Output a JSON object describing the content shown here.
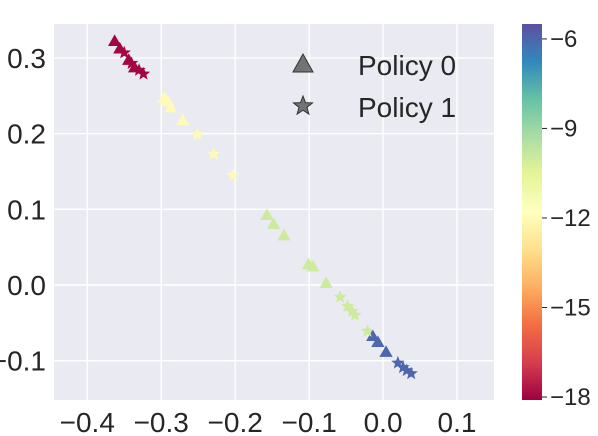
{
  "chart_data": {
    "type": "scatter",
    "title": "",
    "xlabel": "",
    "ylabel": "",
    "xlim": [
      -0.445,
      0.15
    ],
    "ylim": [
      -0.152,
      0.345
    ],
    "x_ticks": [
      -0.4,
      -0.3,
      -0.2,
      -0.1,
      0.0,
      0.1
    ],
    "x_tick_labels": [
      "−0.4",
      "−0.3",
      "−0.2",
      "−0.1",
      "0.0",
      "0.1"
    ],
    "y_ticks": [
      0.3,
      0.2,
      0.1,
      0.0,
      -0.1
    ],
    "y_tick_labels": [
      "0.3",
      "0.2",
      "0.1",
      "0.0",
      "−0.1"
    ],
    "grid": true,
    "background": "#eaeaf2",
    "colormap": "Spectral",
    "colorbar": {
      "range": [
        -18.1,
        -5.5
      ],
      "ticks": [
        -6,
        -9,
        -12,
        -15,
        -18
      ],
      "tick_labels": [
        "−6",
        "−9",
        "−12",
        "−15",
        "−18"
      ]
    },
    "legend": {
      "position": "top-right",
      "entries": [
        {
          "label": "Policy 0",
          "marker": "triangle"
        },
        {
          "label": "Policy 1",
          "marker": "star"
        }
      ]
    },
    "series": [
      {
        "name": "Policy 0",
        "marker": "triangle",
        "points": [
          {
            "x": -0.363,
            "y": 0.322,
            "c": -18
          },
          {
            "x": -0.356,
            "y": 0.312,
            "c": -18
          },
          {
            "x": -0.344,
            "y": 0.297,
            "c": -18
          },
          {
            "x": -0.336,
            "y": 0.287,
            "c": -18
          },
          {
            "x": -0.296,
            "y": 0.247,
            "c": -12
          },
          {
            "x": -0.291,
            "y": 0.242,
            "c": -12
          },
          {
            "x": -0.287,
            "y": 0.234,
            "c": -12
          },
          {
            "x": -0.271,
            "y": 0.217,
            "c": -12
          },
          {
            "x": -0.157,
            "y": 0.092,
            "c": -10
          },
          {
            "x": -0.148,
            "y": 0.08,
            "c": -10
          },
          {
            "x": -0.134,
            "y": 0.065,
            "c": -10
          },
          {
            "x": -0.101,
            "y": 0.027,
            "c": -10
          },
          {
            "x": -0.095,
            "y": 0.024,
            "c": -10
          },
          {
            "x": -0.077,
            "y": 0.002,
            "c": -10
          },
          {
            "x": -0.014,
            "y": -0.068,
            "c": -6
          },
          {
            "x": -0.007,
            "y": -0.076,
            "c": -6
          },
          {
            "x": 0.004,
            "y": -0.089,
            "c": -6
          }
        ]
      },
      {
        "name": "Policy 1",
        "marker": "star",
        "points": [
          {
            "x": -0.35,
            "y": 0.307,
            "c": -18
          },
          {
            "x": -0.34,
            "y": 0.293,
            "c": -18
          },
          {
            "x": -0.33,
            "y": 0.284,
            "c": -18
          },
          {
            "x": -0.324,
            "y": 0.279,
            "c": -18
          },
          {
            "x": -0.251,
            "y": 0.199,
            "c": -12
          },
          {
            "x": -0.229,
            "y": 0.173,
            "c": -12
          },
          {
            "x": -0.203,
            "y": 0.145,
            "c": -12
          },
          {
            "x": -0.058,
            "y": -0.016,
            "c": -10
          },
          {
            "x": -0.048,
            "y": -0.028,
            "c": -10
          },
          {
            "x": -0.042,
            "y": -0.035,
            "c": -10
          },
          {
            "x": -0.038,
            "y": -0.04,
            "c": -10
          },
          {
            "x": -0.021,
            "y": -0.061,
            "c": -10
          },
          {
            "x": 0.02,
            "y": -0.103,
            "c": -6
          },
          {
            "x": 0.027,
            "y": -0.109,
            "c": -6
          },
          {
            "x": 0.032,
            "y": -0.113,
            "c": -6
          },
          {
            "x": 0.038,
            "y": -0.117,
            "c": -6
          }
        ]
      }
    ]
  }
}
